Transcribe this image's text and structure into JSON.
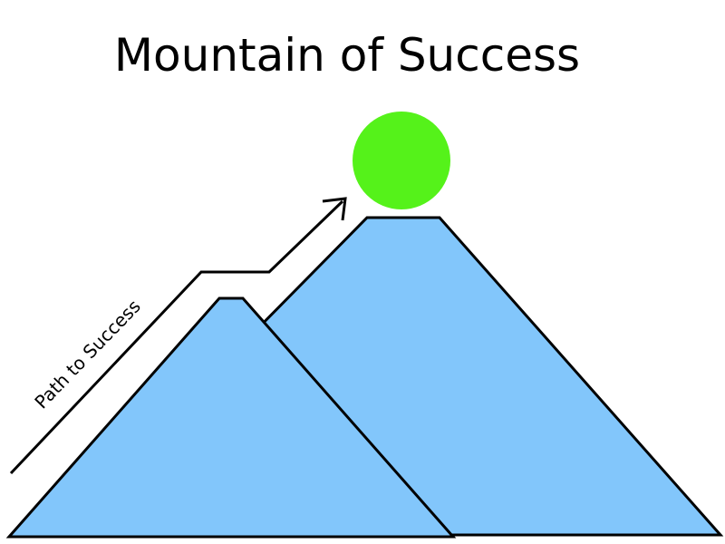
{
  "slide": {
    "title": "Mountain of Success"
  },
  "diagram": {
    "path_label": "Path to Success",
    "colors": {
      "mountain_fill": "#82c6fb",
      "sun_fill": "#55f21a",
      "outline": "#000000"
    }
  }
}
